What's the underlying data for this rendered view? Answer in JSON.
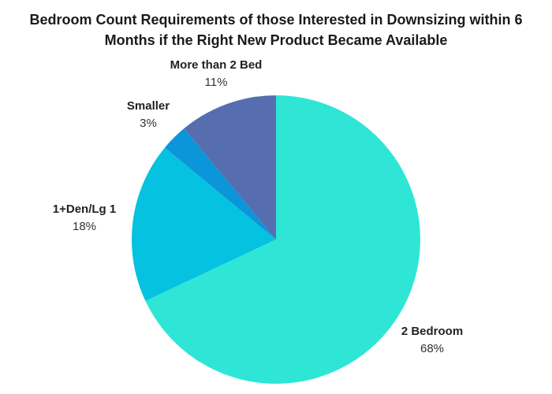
{
  "chart_data": {
    "type": "pie",
    "title_lines": [
      "Bedroom Count Requirements of those Interested in Downsizing within 6",
      "Months if the Right New Product Became Available"
    ],
    "slices": [
      {
        "label": "2 Bedroom",
        "value": 68,
        "display": "68%",
        "color": "#2fe6d6"
      },
      {
        "label": "1+Den/Lg 1",
        "value": 18,
        "display": "18%",
        "color": "#05c2e0"
      },
      {
        "label": "Smaller",
        "value": 3,
        "display": "3%",
        "color": "#0a96d8"
      },
      {
        "label": "More than 2 Bed",
        "value": 11,
        "display": "11%",
        "color": "#566db0"
      }
    ],
    "start": "12 o'clock",
    "direction": "clockwise",
    "legend": "none",
    "labels": "outside, name above percent"
  }
}
